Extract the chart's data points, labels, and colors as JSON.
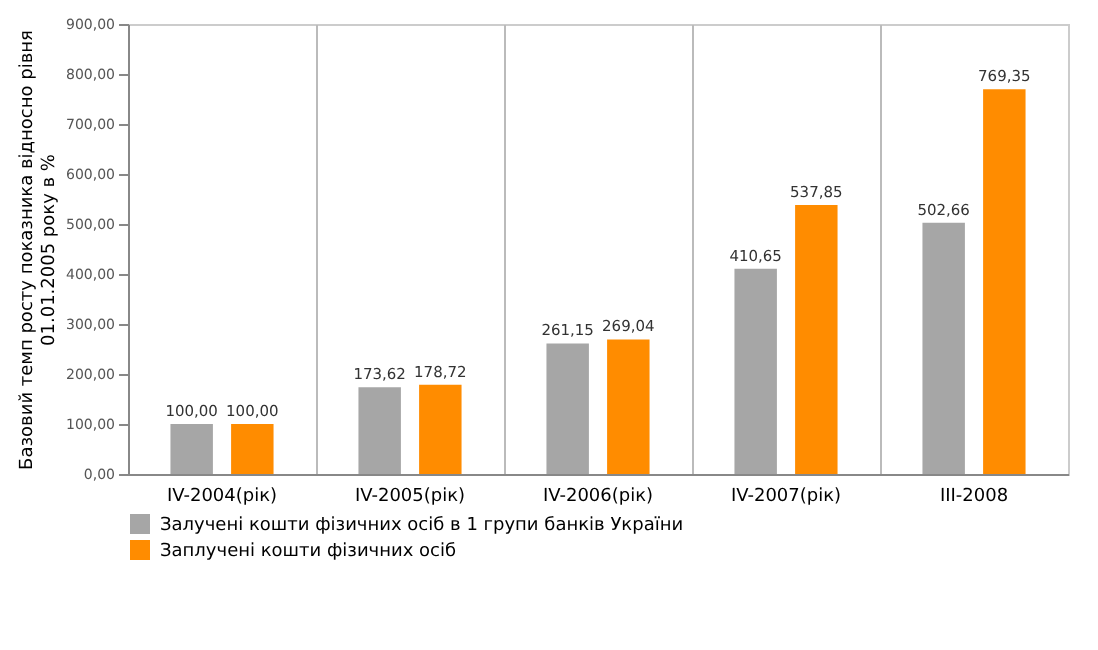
{
  "chart_data": {
    "type": "bar",
    "ylabel": "Базовий темп росту показника відносно рівня 01.01.2005 року в %",
    "categories": [
      "IV-2004(рік)",
      "IV-2005(рік)",
      "IV-2006(рік)",
      "IV-2007(рік)",
      "III-2008"
    ],
    "series": [
      {
        "name": "Залучені кошти фізичних осіб в 1 групи банків України",
        "color": "#a6a6a6",
        "values": [
          100,
          173.62,
          261.15,
          410.65,
          502.66
        ],
        "value_labels": [
          "100,00",
          "173,62",
          "261,15",
          "410,65",
          "502,66"
        ]
      },
      {
        "name": "Заплучені кошти фізичних осіб",
        "color": "#ff8c00",
        "values": [
          100,
          178.72,
          269.04,
          537.85,
          769.35
        ],
        "value_labels": [
          "100,00",
          "178,72",
          "269,04",
          "537,85",
          "769,35"
        ]
      }
    ],
    "ylim": [
      0,
      900
    ],
    "yticks": [
      {
        "value": 0,
        "label": "0,00"
      },
      {
        "value": 100,
        "label": "100,00"
      },
      {
        "value": 200,
        "label": "200,00"
      },
      {
        "value": 300,
        "label": "300,00"
      },
      {
        "value": 400,
        "label": "400,00"
      },
      {
        "value": 500,
        "label": "500,00"
      },
      {
        "value": 600,
        "label": "600,00"
      },
      {
        "value": 700,
        "label": "700,00"
      },
      {
        "value": 800,
        "label": "800,00"
      },
      {
        "value": 900,
        "label": "900,00"
      }
    ],
    "grid": "x",
    "legend": "bottom"
  }
}
